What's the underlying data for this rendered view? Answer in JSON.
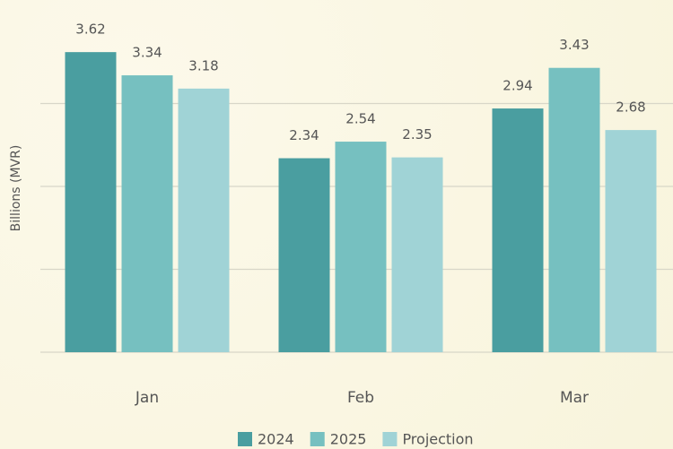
{
  "chart_data": {
    "type": "bar",
    "y_label": "Billions (MVR)",
    "categories": [
      "Jan",
      "Feb",
      "Mar"
    ],
    "series": [
      {
        "name": "2024",
        "color": "#4a9ea0",
        "values": [
          3.62,
          2.34,
          2.94
        ]
      },
      {
        "name": "2025",
        "color": "#76c0c0",
        "values": [
          3.34,
          2.54,
          3.43
        ]
      },
      {
        "name": "Projection",
        "color": "#a0d3d6",
        "values": [
          3.18,
          2.35,
          2.68
        ]
      }
    ],
    "ylim": [
      0,
      4.2
    ],
    "yticks": [
      0,
      1,
      2,
      3
    ],
    "grid": true,
    "legend": "bottom"
  }
}
